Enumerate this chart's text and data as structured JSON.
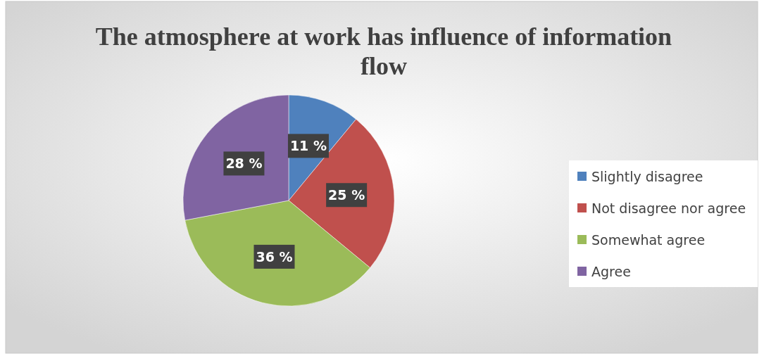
{
  "chart_data": {
    "type": "pie",
    "title": "The atmosphere at work has influence of information flow",
    "categories": [
      "Slightly disagree",
      "Not disagree nor agree",
      "Somewhat agree",
      "Agree"
    ],
    "values": [
      11,
      25,
      36,
      28
    ],
    "colors": [
      "#4f81bd",
      "#c0504d",
      "#9bbb59",
      "#8064a2"
    ],
    "value_labels": [
      "11 %",
      "25 %",
      "36 %",
      "28 %"
    ],
    "legend": "right"
  }
}
